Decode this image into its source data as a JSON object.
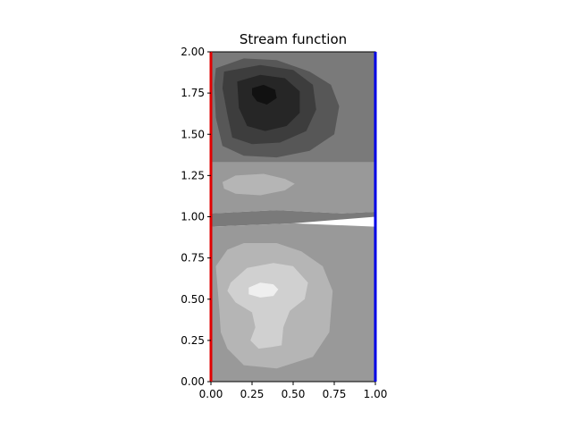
{
  "chart_data": {
    "type": "contour",
    "title": "Stream function",
    "xlabel": "",
    "ylabel": "",
    "xlim": [
      0.0,
      1.0
    ],
    "ylim": [
      0.0,
      2.0
    ],
    "x_ticks": [
      "0.00",
      "0.25",
      "0.50",
      "0.75",
      "1.00"
    ],
    "y_ticks": [
      "0.00",
      "0.25",
      "0.50",
      "0.75",
      "1.00",
      "1.25",
      "1.50",
      "1.75",
      "2.00"
    ],
    "colormap": "gray",
    "grid": false,
    "legend": "none",
    "boundary_lines": [
      {
        "x": 0.0,
        "color": "#e00000"
      },
      {
        "x": 1.0,
        "color": "#0000e6"
      }
    ],
    "regions": [
      {
        "level": 0,
        "fill": "#7a7a7a",
        "points": [
          [
            0,
            1.33
          ],
          [
            1,
            1.33
          ],
          [
            1,
            2
          ],
          [
            0,
            2
          ]
        ]
      },
      {
        "level": 1,
        "fill": "#999999",
        "points": [
          [
            0,
            1.02
          ],
          [
            0.4,
            1.04
          ],
          [
            0.8,
            1.02
          ],
          [
            1,
            1.03
          ],
          [
            1,
            1.33
          ],
          [
            0,
            1.33
          ]
        ]
      },
      {
        "level": 0,
        "fill": "#7a7a7a",
        "points": [
          [
            0,
            0.94
          ],
          [
            0.5,
            0.96
          ],
          [
            1,
            1.0
          ],
          [
            1,
            1.03
          ],
          [
            0.8,
            1.02
          ],
          [
            0.4,
            1.04
          ],
          [
            0,
            1.02
          ]
        ]
      },
      {
        "level": 1,
        "fill": "#999999",
        "points": [
          [
            0,
            0
          ],
          [
            1,
            0
          ],
          [
            1,
            0.94
          ],
          [
            0.5,
            0.96
          ],
          [
            0,
            0.94
          ]
        ]
      },
      {
        "level": 2,
        "fill": "#575757",
        "points": [
          [
            0.03,
            1.9
          ],
          [
            0.2,
            1.96
          ],
          [
            0.4,
            1.95
          ],
          [
            0.6,
            1.88
          ],
          [
            0.73,
            1.8
          ],
          [
            0.78,
            1.67
          ],
          [
            0.75,
            1.5
          ],
          [
            0.6,
            1.4
          ],
          [
            0.4,
            1.36
          ],
          [
            0.2,
            1.37
          ],
          [
            0.07,
            1.43
          ],
          [
            0.03,
            1.6
          ],
          [
            0.02,
            1.8
          ]
        ]
      },
      {
        "level": 3,
        "fill": "#3d3d3d",
        "points": [
          [
            0.08,
            1.88
          ],
          [
            0.3,
            1.92
          ],
          [
            0.5,
            1.89
          ],
          [
            0.62,
            1.8
          ],
          [
            0.64,
            1.65
          ],
          [
            0.58,
            1.52
          ],
          [
            0.42,
            1.45
          ],
          [
            0.25,
            1.44
          ],
          [
            0.13,
            1.48
          ],
          [
            0.1,
            1.62
          ],
          [
            0.07,
            1.78
          ]
        ]
      },
      {
        "level": 4,
        "fill": "#262626",
        "points": [
          [
            0.16,
            1.82
          ],
          [
            0.3,
            1.86
          ],
          [
            0.45,
            1.84
          ],
          [
            0.54,
            1.76
          ],
          [
            0.54,
            1.63
          ],
          [
            0.46,
            1.55
          ],
          [
            0.33,
            1.52
          ],
          [
            0.22,
            1.55
          ],
          [
            0.17,
            1.66
          ]
        ]
      },
      {
        "level": 5,
        "fill": "#111111",
        "points": [
          [
            0.25,
            1.78
          ],
          [
            0.32,
            1.8
          ],
          [
            0.39,
            1.77
          ],
          [
            0.4,
            1.72
          ],
          [
            0.34,
            1.68
          ],
          [
            0.28,
            1.7
          ],
          [
            0.25,
            1.74
          ]
        ]
      },
      {
        "level": 1,
        "fill": "#b5b5b5",
        "points": [
          [
            0.07,
            1.21
          ],
          [
            0.15,
            1.25
          ],
          [
            0.32,
            1.26
          ],
          [
            0.45,
            1.23
          ],
          [
            0.51,
            1.2
          ],
          [
            0.45,
            1.16
          ],
          [
            0.3,
            1.13
          ],
          [
            0.15,
            1.14
          ],
          [
            0.08,
            1.17
          ]
        ]
      },
      {
        "level": -1,
        "fill": "#b5b5b5",
        "points": [
          [
            0.03,
            0.7
          ],
          [
            0.1,
            0.8
          ],
          [
            0.2,
            0.84
          ],
          [
            0.4,
            0.84
          ],
          [
            0.55,
            0.79
          ],
          [
            0.68,
            0.7
          ],
          [
            0.74,
            0.55
          ],
          [
            0.72,
            0.3
          ],
          [
            0.62,
            0.15
          ],
          [
            0.4,
            0.08
          ],
          [
            0.2,
            0.1
          ],
          [
            0.1,
            0.2
          ],
          [
            0.06,
            0.3
          ],
          [
            0.05,
            0.45
          ]
        ]
      },
      {
        "level": -2,
        "fill": "#d0d0d0",
        "points": [
          [
            0.12,
            0.6
          ],
          [
            0.22,
            0.69
          ],
          [
            0.38,
            0.72
          ],
          [
            0.5,
            0.7
          ],
          [
            0.59,
            0.6
          ],
          [
            0.57,
            0.5
          ],
          [
            0.48,
            0.43
          ],
          [
            0.44,
            0.33
          ],
          [
            0.43,
            0.22
          ],
          [
            0.37,
            0.21
          ],
          [
            0.29,
            0.2
          ],
          [
            0.24,
            0.25
          ],
          [
            0.27,
            0.33
          ],
          [
            0.25,
            0.42
          ],
          [
            0.15,
            0.48
          ],
          [
            0.1,
            0.55
          ]
        ]
      },
      {
        "level": -3,
        "fill": "#efefef",
        "points": [
          [
            0.23,
            0.57
          ],
          [
            0.3,
            0.6
          ],
          [
            0.38,
            0.59
          ],
          [
            0.41,
            0.56
          ],
          [
            0.38,
            0.52
          ],
          [
            0.3,
            0.51
          ],
          [
            0.23,
            0.53
          ]
        ]
      }
    ]
  }
}
